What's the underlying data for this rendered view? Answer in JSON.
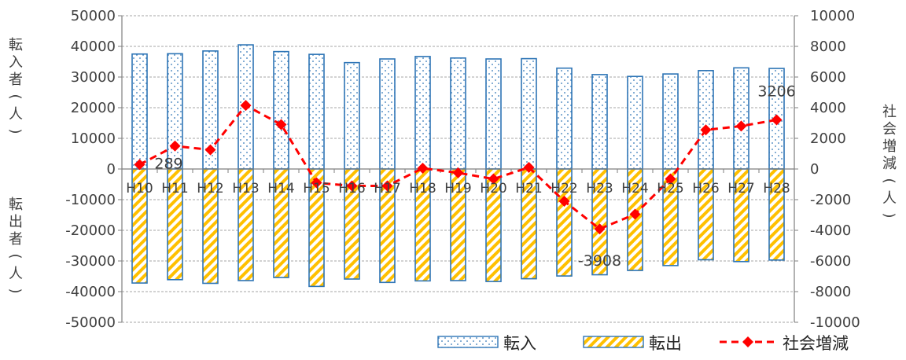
{
  "chart_data": {
    "type": "bar",
    "categories": [
      "H10",
      "H11",
      "H12",
      "H13",
      "H14",
      "H15",
      "H16",
      "H17",
      "H18",
      "H19",
      "H20",
      "H21",
      "H22",
      "H23",
      "H24",
      "H25",
      "H26",
      "H27",
      "H28"
    ],
    "series": [
      {
        "name": "転入",
        "type": "bar",
        "axis": "left",
        "color": "#1f77b4",
        "pattern": "dots",
        "values": [
          37500,
          37600,
          38500,
          40500,
          38300,
          37400,
          34700,
          35900,
          36700,
          36200,
          35900,
          36000,
          32900,
          30800,
          30200,
          31000,
          32100,
          33000,
          32800
        ]
      },
      {
        "name": "転出",
        "type": "bar",
        "axis": "left",
        "color": "#1f77b4",
        "fill": "#ffc000",
        "pattern": "diagonal-stripes",
        "values": [
          -37200,
          -36100,
          -37300,
          -36400,
          -35400,
          -38300,
          -35900,
          -37000,
          -36500,
          -36400,
          -36700,
          -35800,
          -34900,
          -34500,
          -33100,
          -31500,
          -29600,
          -30200,
          -29700
        ]
      },
      {
        "name": "社会増減",
        "type": "line",
        "axis": "right",
        "color": "#ff0000",
        "marker": "diamond",
        "line_style": "dashed",
        "values": [
          289,
          1500,
          1250,
          4150,
          2900,
          -900,
          -1100,
          -1100,
          50,
          -250,
          -650,
          100,
          -2100,
          -3908,
          -2950,
          -650,
          2550,
          2800,
          3206
        ]
      }
    ],
    "data_labels": [
      {
        "series": "社会増減",
        "category": "H10",
        "text": "289"
      },
      {
        "series": "社会増減",
        "category": "H23",
        "text": "-3908"
      },
      {
        "series": "社会増減",
        "category": "H28",
        "text": "3206"
      }
    ],
    "y_left": {
      "range": [
        -50000,
        50000
      ],
      "ticks": [
        "50000",
        "40000",
        "30000",
        "20000",
        "10000",
        "0",
        "-10000",
        "-20000",
        "-30000",
        "-40000",
        "-50000"
      ]
    },
    "y_right": {
      "range": [
        -10000,
        10000
      ],
      "ticks": [
        "10000",
        "8000",
        "6000",
        "4000",
        "2000",
        "0",
        "-2000",
        "-4000",
        "-6000",
        "-8000",
        "-10000"
      ]
    },
    "left_axis_labels": {
      "upper": "転入者(人)",
      "lower": "転出者(人)"
    },
    "right_axis_label": "社会増減(人)",
    "grid": "horizontal-dashed",
    "legend_position": "bottom-right"
  },
  "colors": {
    "bar_edge": "#2e75b6",
    "out_fill": "#ffc000",
    "line": "#ff0000",
    "grid": "#a6a6a6",
    "axis": "#7f7f7f",
    "text": "#404040"
  }
}
